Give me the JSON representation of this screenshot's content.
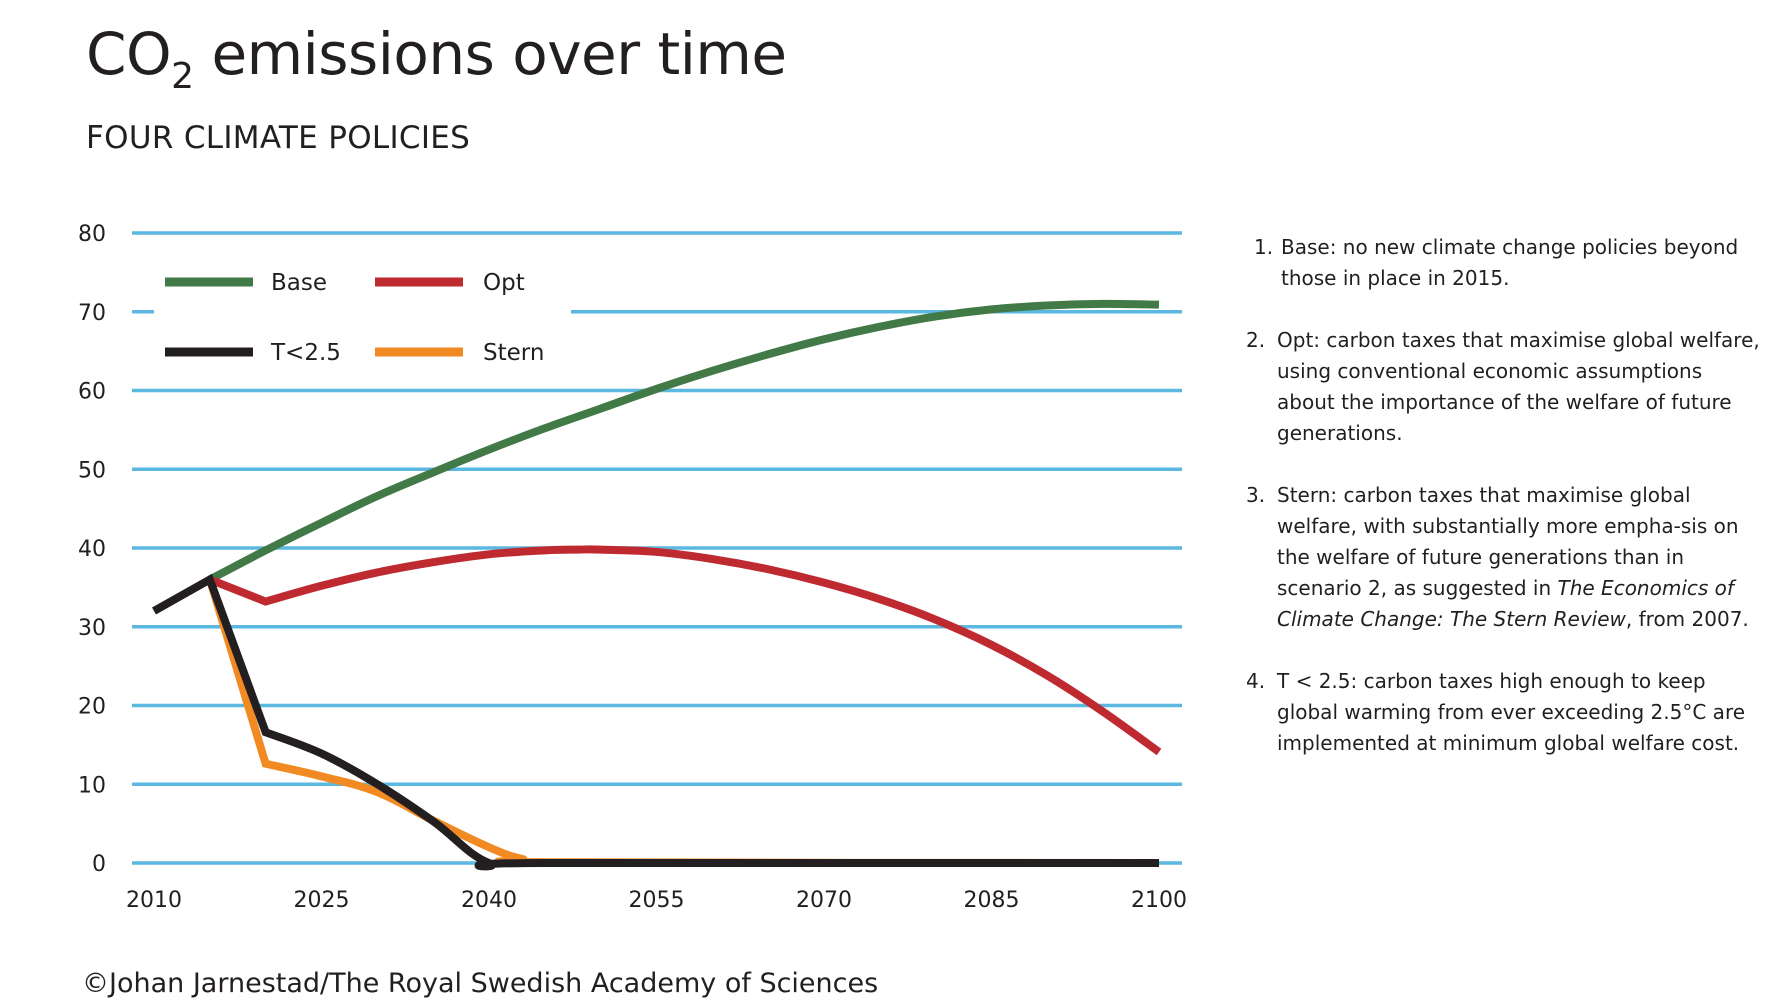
{
  "header": {
    "title_prefix": "CO",
    "title_subscript": "2",
    "title_suffix": " emissions over time",
    "subtitle": "FOUR CLIMATE POLICIES"
  },
  "chart_data": {
    "type": "line",
    "title": "CO2 emissions over time",
    "subtitle": "FOUR CLIMATE POLICIES",
    "xlabel": "",
    "ylabel": "",
    "xlim": [
      2010,
      2100
    ],
    "ylim": [
      0,
      80
    ],
    "x_ticks": [
      2010,
      2025,
      2040,
      2055,
      2070,
      2085,
      2100
    ],
    "x_tick_labels": [
      "2010",
      "2025",
      "2040",
      "2055",
      "2070",
      "2085",
      "2100"
    ],
    "y_ticks": [
      0,
      10,
      20,
      30,
      40,
      50,
      60,
      70,
      80
    ],
    "y_tick_labels": [
      "0",
      "10",
      "20",
      "30",
      "40",
      "50",
      "60",
      "70",
      "80"
    ],
    "grid": "horizontal",
    "legend_position": "top-left",
    "series": [
      {
        "name": "Base",
        "color": "#427a47",
        "points": [
          [
            2015,
            36
          ],
          [
            2020,
            39.7
          ],
          [
            2025,
            43.2
          ],
          [
            2030,
            46.6
          ],
          [
            2035,
            49.6
          ],
          [
            2040,
            52.5
          ],
          [
            2045,
            55.2
          ],
          [
            2050,
            57.7
          ],
          [
            2055,
            60.2
          ],
          [
            2060,
            62.5
          ],
          [
            2065,
            64.6
          ],
          [
            2070,
            66.5
          ],
          [
            2075,
            68.1
          ],
          [
            2080,
            69.4
          ],
          [
            2085,
            70.3
          ],
          [
            2090,
            70.8
          ],
          [
            2095,
            71.0
          ],
          [
            2100,
            70.9
          ]
        ]
      },
      {
        "name": "Opt",
        "color": "#bf2a31",
        "points": [
          [
            2015,
            36
          ],
          [
            2020,
            33.2
          ],
          [
            2025,
            35.2
          ],
          [
            2030,
            36.9
          ],
          [
            2035,
            38.2
          ],
          [
            2040,
            39.2
          ],
          [
            2045,
            39.7
          ],
          [
            2048,
            39.8
          ],
          [
            2050,
            39.8
          ],
          [
            2055,
            39.5
          ],
          [
            2060,
            38.6
          ],
          [
            2065,
            37.3
          ],
          [
            2070,
            35.6
          ],
          [
            2075,
            33.5
          ],
          [
            2080,
            30.9
          ],
          [
            2085,
            27.7
          ],
          [
            2090,
            23.8
          ],
          [
            2095,
            19.2
          ],
          [
            2100,
            14.1
          ]
        ]
      },
      {
        "name": "T<2.5",
        "color": "#231f20",
        "points": [
          [
            2010,
            32
          ],
          [
            2015,
            36
          ],
          [
            2020,
            16.6
          ],
          [
            2025,
            13.9
          ],
          [
            2030,
            10
          ],
          [
            2035,
            5.3
          ],
          [
            2040,
            0
          ],
          [
            2045,
            0
          ],
          [
            2100,
            0
          ]
        ]
      },
      {
        "name": "Stern",
        "color": "#f28a24",
        "points": [
          [
            2015,
            36
          ],
          [
            2020,
            12.6
          ],
          [
            2025,
            11
          ],
          [
            2030,
            9
          ],
          [
            2035,
            5.4
          ],
          [
            2040,
            2
          ],
          [
            2043,
            0.5
          ],
          [
            2046,
            0.1
          ],
          [
            2100,
            0
          ]
        ]
      }
    ]
  },
  "notes": [
    {
      "num": "1.",
      "parts": [
        {
          "text": "Base: no new climate change policies beyond those in place in 2015.",
          "italic": false
        }
      ]
    },
    {
      "num": "2.",
      "parts": [
        {
          "text": "Opt: carbon taxes that maximise global welfare, using conventional economic assumptions about the importance of the welfare of future generations.",
          "italic": false
        }
      ]
    },
    {
      "num": "3.",
      "parts": [
        {
          "text": "Stern: carbon taxes that maximise global welfare, with substantially more empha-sis on the welfare of future generations than in scenario 2, as suggested in ",
          "italic": false
        },
        {
          "text": "The Economics of Climate Change: The Stern Review",
          "italic": true
        },
        {
          "text": ", from 2007.",
          "italic": false
        }
      ]
    },
    {
      "num": "4.",
      "parts": [
        {
          "text": "T < 2.5: carbon taxes high enough to keep global warming from ever exceeding 2.5°C are implemented at minimum global welfare cost.",
          "italic": false
        }
      ]
    }
  ],
  "footer": {
    "credit": "©Johan Jarnestad/The Royal Swedish Academy of Sciences"
  },
  "colors": {
    "grid": "#5bb8e0",
    "text": "#231f20"
  }
}
